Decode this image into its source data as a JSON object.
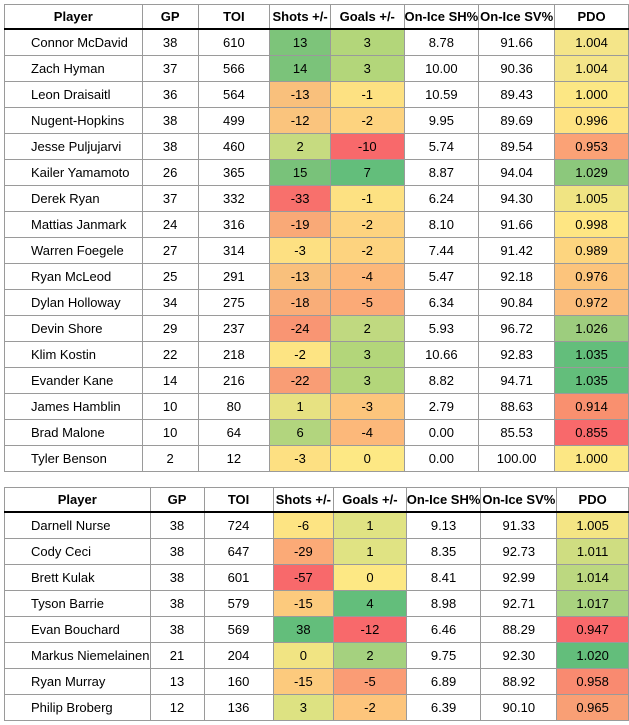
{
  "headers": [
    "Player",
    "GP",
    "TOI",
    "Shots +/-",
    "Goals +/-",
    "On-Ice SH%",
    "On-Ice SV%",
    "PDO"
  ],
  "forwards": [
    {
      "player": "Connor McDavid",
      "gp": "38",
      "toi": "610",
      "shots": "13",
      "goals": "3",
      "sh": "8.78",
      "sv": "91.66",
      "pdo": "1.004",
      "shots_color": "#7dc47a",
      "goals_color": "#b3d67a",
      "pdo_color": "#f4e589"
    },
    {
      "player": "Zach Hyman",
      "gp": "37",
      "toi": "566",
      "shots": "14",
      "goals": "3",
      "sh": "10.00",
      "sv": "90.36",
      "pdo": "1.004",
      "shots_color": "#7bc37a",
      "goals_color": "#b3d67a",
      "pdo_color": "#f4e589"
    },
    {
      "player": "Leon Draisaitl",
      "gp": "36",
      "toi": "564",
      "shots": "-13",
      "goals": "-1",
      "sh": "10.59",
      "sv": "89.43",
      "pdo": "1.000",
      "shots_color": "#f9c07c",
      "goals_color": "#fde182",
      "pdo_color": "#fce784"
    },
    {
      "player": "Nugent-Hopkins",
      "gp": "38",
      "toi": "499",
      "shots": "-12",
      "goals": "-2",
      "sh": "9.95",
      "sv": "89.69",
      "pdo": "0.996",
      "shots_color": "#fac47d",
      "goals_color": "#fdd37f",
      "pdo_color": "#fee382"
    },
    {
      "player": "Jesse Puljujarvi",
      "gp": "38",
      "toi": "460",
      "shots": "2",
      "goals": "-10",
      "sh": "5.74",
      "sv": "89.54",
      "pdo": "0.953",
      "shots_color": "#c6db80",
      "goals_color": "#f8696b",
      "pdo_color": "#fba276"
    },
    {
      "player": "Kailer Yamamoto",
      "gp": "26",
      "toi": "365",
      "shots": "15",
      "goals": "7",
      "sh": "8.87",
      "sv": "94.04",
      "pdo": "1.029",
      "shots_color": "#79c27a",
      "goals_color": "#63be7b",
      "pdo_color": "#8cc87c"
    },
    {
      "player": "Derek Ryan",
      "gp": "37",
      "toi": "332",
      "shots": "-33",
      "goals": "-1",
      "sh": "6.24",
      "sv": "94.30",
      "pdo": "1.005",
      "shots_color": "#f8706c",
      "goals_color": "#fde182",
      "pdo_color": "#f0e483"
    },
    {
      "player": "Mattias Janmark",
      "gp": "24",
      "toi": "316",
      "shots": "-19",
      "goals": "-2",
      "sh": "8.10",
      "sv": "91.66",
      "pdo": "0.998",
      "shots_color": "#f9a977",
      "goals_color": "#fdd37f",
      "pdo_color": "#fee683"
    },
    {
      "player": "Warren Foegele",
      "gp": "27",
      "toi": "314",
      "shots": "-3",
      "goals": "-2",
      "sh": "7.44",
      "sv": "91.42",
      "pdo": "0.989",
      "shots_color": "#fde082",
      "goals_color": "#fdd37f",
      "pdo_color": "#fdd57f"
    },
    {
      "player": "Ryan McLeod",
      "gp": "25",
      "toi": "291",
      "shots": "-13",
      "goals": "-4",
      "sh": "5.47",
      "sv": "92.18",
      "pdo": "0.976",
      "shots_color": "#f9c07c",
      "goals_color": "#fcb87a",
      "pdo_color": "#fcc47c"
    },
    {
      "player": "Dylan Holloway",
      "gp": "34",
      "toi": "275",
      "shots": "-18",
      "goals": "-5",
      "sh": "6.34",
      "sv": "90.84",
      "pdo": "0.972",
      "shots_color": "#f9ad78",
      "goals_color": "#fbaa77",
      "pdo_color": "#fbbd7b"
    },
    {
      "player": "Devin Shore",
      "gp": "29",
      "toi": "237",
      "shots": "-24",
      "goals": "2",
      "sh": "5.93",
      "sv": "96.72",
      "pdo": "1.026",
      "shots_color": "#f99573",
      "goals_color": "#c0d980",
      "pdo_color": "#9dcd7e"
    },
    {
      "player": "Klim Kostin",
      "gp": "22",
      "toi": "218",
      "shots": "-2",
      "goals": "3",
      "sh": "10.66",
      "sv": "92.83",
      "pdo": "1.035",
      "shots_color": "#fde483",
      "goals_color": "#b3d67a",
      "pdo_color": "#63be7b"
    },
    {
      "player": "Evander Kane",
      "gp": "14",
      "toi": "216",
      "shots": "-22",
      "goals": "3",
      "sh": "8.82",
      "sv": "94.71",
      "pdo": "1.035",
      "shots_color": "#f99d75",
      "goals_color": "#b3d67a",
      "pdo_color": "#63be7b"
    },
    {
      "player": "James Hamblin",
      "gp": "10",
      "toi": "80",
      "shots": "1",
      "goals": "-3",
      "sh": "2.79",
      "sv": "88.63",
      "pdo": "0.914",
      "shots_color": "#e7e282",
      "goals_color": "#fcc57c",
      "pdo_color": "#f9906f"
    },
    {
      "player": "Brad Malone",
      "gp": "10",
      "toi": "64",
      "shots": "6",
      "goals": "-4",
      "sh": "0.00",
      "sv": "85.53",
      "pdo": "0.855",
      "shots_color": "#b2d57e",
      "goals_color": "#fcb87a",
      "pdo_color": "#f8696b"
    },
    {
      "player": "Tyler Benson",
      "gp": "2",
      "toi": "12",
      "shots": "-3",
      "goals": "0",
      "sh": "0.00",
      "sv": "100.00",
      "pdo": "1.000",
      "shots_color": "#fde082",
      "goals_color": "#fde884",
      "pdo_color": "#fce784"
    }
  ],
  "defense": [
    {
      "player": "Darnell Nurse",
      "gp": "38",
      "toi": "724",
      "shots": "-6",
      "goals": "1",
      "sh": "9.13",
      "sv": "91.33",
      "pdo": "1.005",
      "shots_color": "#fde483",
      "goals_color": "#e0e383",
      "pdo_color": "#f4e584"
    },
    {
      "player": "Cody Ceci",
      "gp": "38",
      "toi": "647",
      "shots": "-29",
      "goals": "1",
      "sh": "8.35",
      "sv": "92.73",
      "pdo": "1.011",
      "shots_color": "#fbaa77",
      "goals_color": "#e0e383",
      "pdo_color": "#cfdd81"
    },
    {
      "player": "Brett Kulak",
      "gp": "38",
      "toi": "601",
      "shots": "-57",
      "goals": "0",
      "sh": "8.41",
      "sv": "92.99",
      "pdo": "1.014",
      "shots_color": "#f8696b",
      "goals_color": "#fde884",
      "pdo_color": "#bcd880"
    },
    {
      "player": "Tyson Barrie",
      "gp": "38",
      "toi": "579",
      "shots": "-15",
      "goals": "4",
      "sh": "8.98",
      "sv": "92.71",
      "pdo": "1.017",
      "shots_color": "#fcca7d",
      "goals_color": "#63be7b",
      "pdo_color": "#a9d27f"
    },
    {
      "player": "Evan Bouchard",
      "gp": "38",
      "toi": "569",
      "shots": "38",
      "goals": "-12",
      "sh": "6.46",
      "sv": "88.29",
      "pdo": "0.947",
      "shots_color": "#63be7b",
      "goals_color": "#f8696b",
      "pdo_color": "#f8696b"
    },
    {
      "player": "Markus Niemelainen",
      "gp": "21",
      "toi": "204",
      "shots": "0",
      "goals": "2",
      "sh": "9.75",
      "sv": "92.30",
      "pdo": "1.020",
      "shots_color": "#f1e483",
      "goals_color": "#a5d17f",
      "pdo_color": "#63be7b"
    },
    {
      "player": "Ryan Murray",
      "gp": "13",
      "toi": "160",
      "shots": "-15",
      "goals": "-5",
      "sh": "6.89",
      "sv": "88.92",
      "pdo": "0.958",
      "shots_color": "#fcca7d",
      "goals_color": "#fa9c75",
      "pdo_color": "#f98a70"
    },
    {
      "player": "Philip Broberg",
      "gp": "12",
      "toi": "136",
      "shots": "3",
      "goals": "-2",
      "sh": "6.39",
      "sv": "90.10",
      "pdo": "0.965",
      "shots_color": "#dde282",
      "goals_color": "#fdc57c",
      "pdo_color": "#f99f75"
    }
  ]
}
